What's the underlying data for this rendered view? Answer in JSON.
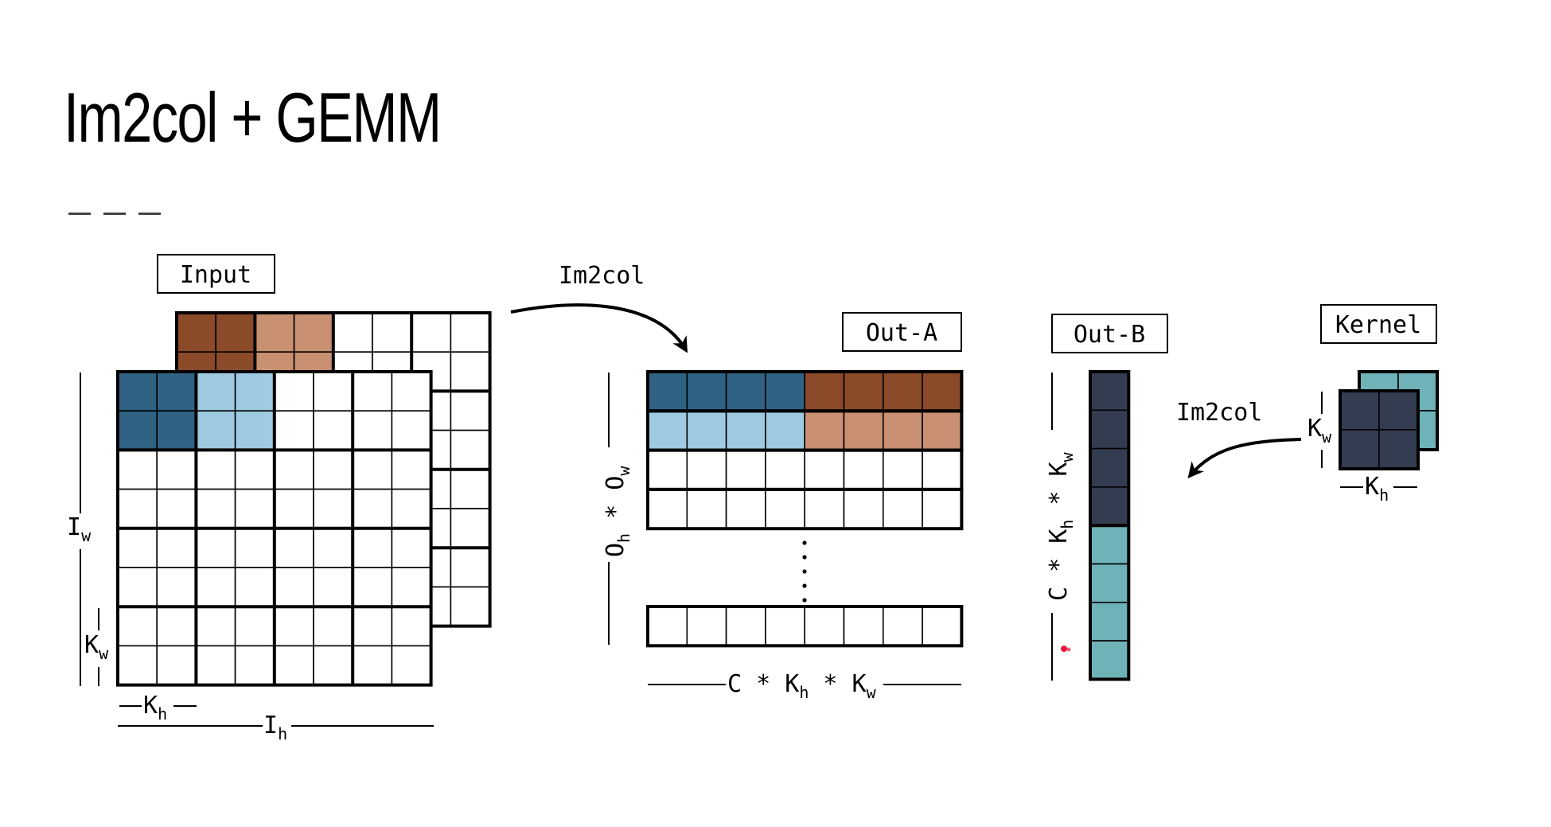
{
  "slide": {
    "title": "Im2col + GEMM"
  },
  "labels": {
    "input": "Input",
    "out_a": "Out-A",
    "out_b": "Out-B",
    "kernel": "Kernel",
    "im2col_top": "Im2col",
    "im2col_right": "Im2col"
  },
  "dimensions": {
    "input_width": "I",
    "input_width_sub": "w",
    "input_height": "I",
    "input_height_sub": "h",
    "input_kw": "K",
    "input_kw_sub": "w",
    "input_kh": "K",
    "input_kh_sub": "h",
    "out_a_rows": "O",
    "out_a_rows_sub1": "h",
    "out_a_rows_mid": " * O",
    "out_a_rows_sub2": "w",
    "out_a_cols_pre": "C * K",
    "out_a_cols_sub1": "h",
    "out_a_cols_mid": " * K",
    "out_a_cols_sub2": "w",
    "out_b_rows_pre": "C * K",
    "out_b_rows_sub1": "h",
    "out_b_rows_mid": " * K",
    "out_b_rows_sub2": "w",
    "kernel_kw": "K",
    "kernel_kw_sub": "w",
    "kernel_kh": "K",
    "kernel_kh_sub": "h"
  },
  "colors": {
    "dark_blue": "#2f6283",
    "light_blue": "#9fcbe2",
    "dark_brown": "#8b4a2a",
    "light_brown": "#c99072",
    "navy": "#333c50",
    "teal": "#6fb3b9",
    "pointer": "#e8143c"
  }
}
